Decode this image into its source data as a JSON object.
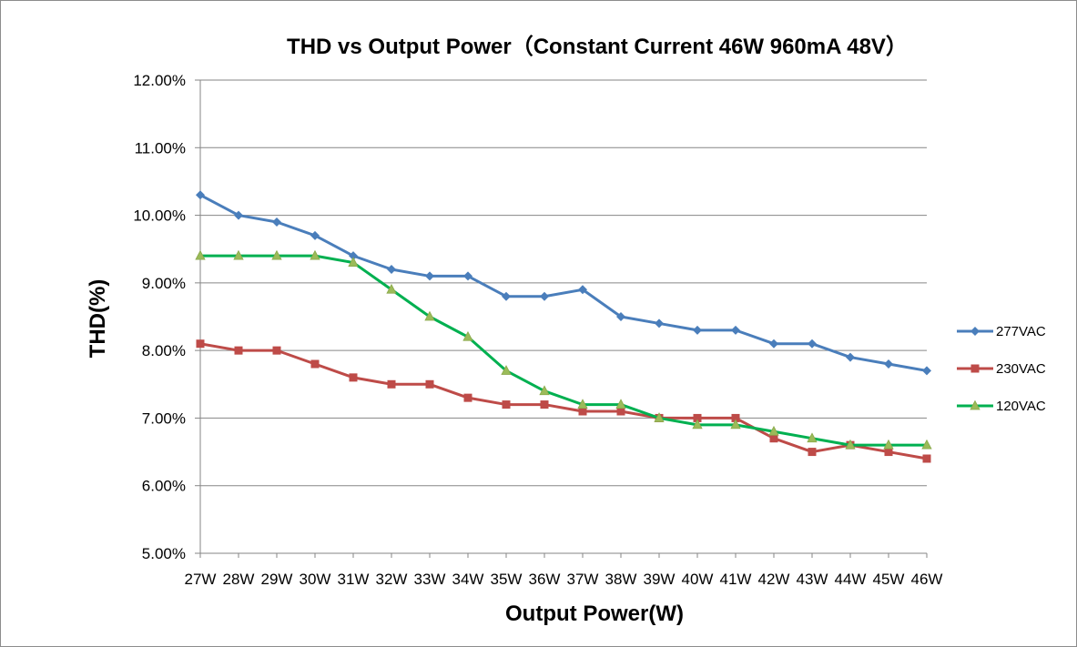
{
  "chart_data": {
    "type": "line",
    "title": "THD vs Output Power（Constant Current 46W  960mA 48V）",
    "xlabel": "Output Power(W)",
    "ylabel": "THD(%)",
    "categories": [
      "27W",
      "28W",
      "29W",
      "30W",
      "31W",
      "32W",
      "33W",
      "34W",
      "35W",
      "36W",
      "37W",
      "38W",
      "39W",
      "40W",
      "41W",
      "42W",
      "43W",
      "44W",
      "45W",
      "46W"
    ],
    "y_ticks": [
      "5.00%",
      "6.00%",
      "7.00%",
      "8.00%",
      "9.00%",
      "10.00%",
      "11.00%",
      "12.00%"
    ],
    "ylim": [
      5,
      12
    ],
    "grid": "horizontal",
    "legend_position": "right",
    "series": [
      {
        "name": "277VAC",
        "color": "#4a7ebb",
        "marker": "diamond",
        "values": [
          10.3,
          10.0,
          9.9,
          9.7,
          9.4,
          9.2,
          9.1,
          9.1,
          8.8,
          8.8,
          8.9,
          8.5,
          8.4,
          8.3,
          8.3,
          8.1,
          8.1,
          7.9,
          7.8,
          7.7
        ]
      },
      {
        "name": "230VAC",
        "color": "#be4b48",
        "marker": "square",
        "values": [
          8.1,
          8.0,
          8.0,
          7.8,
          7.6,
          7.5,
          7.5,
          7.3,
          7.2,
          7.2,
          7.1,
          7.1,
          7.0,
          7.0,
          7.0,
          6.7,
          6.5,
          6.6,
          6.5,
          6.4
        ]
      },
      {
        "name": "120VAC",
        "color": "#00b050",
        "marker": "triangle",
        "marker_color": "#9bbb59",
        "values": [
          9.4,
          9.4,
          9.4,
          9.4,
          9.3,
          8.9,
          8.5,
          8.2,
          7.7,
          7.4,
          7.2,
          7.2,
          7.0,
          6.9,
          6.9,
          6.8,
          6.7,
          6.6,
          6.6,
          6.6
        ]
      }
    ]
  }
}
